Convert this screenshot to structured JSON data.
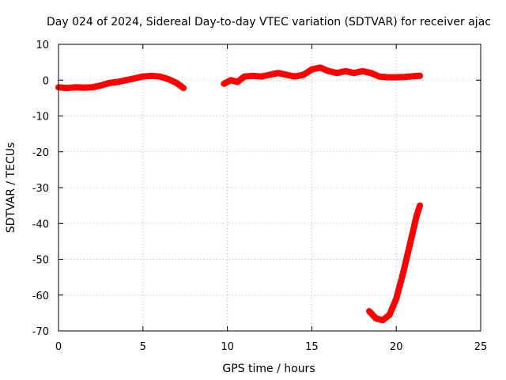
{
  "chart_data": {
    "type": "line",
    "title": "Day 024 of 2024, Sidereal Day-to-day VTEC variation (SDTVAR) for receiver ajac",
    "xlabel": "GPS time / hours",
    "ylabel": "SDTVAR / TECUs",
    "xlim": [
      0,
      25
    ],
    "ylim": [
      -70,
      10
    ],
    "xticks": [
      0,
      5,
      10,
      15,
      20,
      25
    ],
    "yticks": [
      10,
      0,
      -10,
      -20,
      -30,
      -40,
      -50,
      -60,
      -70
    ],
    "grid": true,
    "series_color": "#ff0000",
    "series": [
      {
        "name": "segment-1",
        "x": [
          0,
          0.5,
          1,
          1.5,
          2,
          2.5,
          3,
          3.5,
          4,
          4.5,
          5,
          5.5,
          6,
          6.5,
          7,
          7.4
        ],
        "y": [
          -2,
          -2.2,
          -2,
          -2.1,
          -2,
          -1.5,
          -0.8,
          -0.5,
          0,
          0.5,
          1,
          1.2,
          1,
          0.3,
          -0.8,
          -2.2
        ]
      },
      {
        "name": "segment-2",
        "x": [
          9.8,
          10.2,
          10.6,
          11,
          11.5,
          12,
          12.5,
          13,
          13.5,
          14,
          14.5,
          15,
          15.5,
          16,
          16.5,
          17,
          17.5,
          18,
          18.5,
          19,
          19.5,
          20,
          20.5,
          21,
          21.4
        ],
        "y": [
          -1,
          0,
          -0.5,
          1,
          1.2,
          1,
          1.5,
          2,
          1.5,
          1,
          1.5,
          3,
          3.5,
          2.5,
          2,
          2.5,
          2,
          2.5,
          2,
          1,
          0.8,
          0.8,
          0.9,
          1.1,
          1.2
        ]
      },
      {
        "name": "segment-3",
        "x": [
          18.4,
          18.8,
          19.2,
          19.6,
          20,
          20.4,
          20.8,
          21.2,
          21.4
        ],
        "y": [
          -64.5,
          -66.5,
          -67,
          -65.5,
          -61,
          -54,
          -46,
          -38,
          -35
        ]
      }
    ]
  }
}
